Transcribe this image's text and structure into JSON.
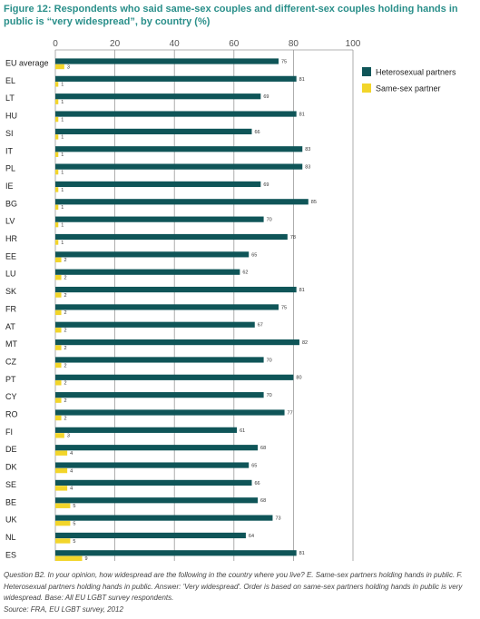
{
  "title": "Figure 12: Respondents who said same-sex couples and different-sex couples holding hands in public is “very widespread”, by country (%)",
  "footnote": {
    "question": "Question B2. In your opinion, how widespread are the following in the country where you live? E. Same-sex partners holding hands in public. F. Heterosexual partners holding hands in public. Answer: 'Very widespread'. Order is based on same-sex partners holding hands in public is very widespread. Base: All EU LGBT survey respondents.",
    "source": "Source: FRA, EU LGBT survey, 2012"
  },
  "colors": {
    "heterosexual": "#0f5558",
    "same_sex": "#f2d52a",
    "title": "#2a8f8a",
    "grid": "#9a9a9a"
  },
  "chart_data": {
    "type": "bar",
    "orientation": "horizontal",
    "categories": [
      "EU average",
      "EL",
      "LT",
      "HU",
      "SI",
      "IT",
      "PL",
      "IE",
      "BG",
      "LV",
      "HR",
      "EE",
      "LU",
      "SK",
      "FR",
      "AT",
      "MT",
      "CZ",
      "PT",
      "CY",
      "RO",
      "FI",
      "DE",
      "DK",
      "SE",
      "BE",
      "UK",
      "NL",
      "ES"
    ],
    "series": [
      {
        "name": "Heterosexual partners",
        "values": [
          75,
          81,
          69,
          81,
          66,
          83,
          83,
          69,
          85,
          70,
          78,
          65,
          62,
          81,
          75,
          67,
          82,
          70,
          80,
          70,
          77,
          61,
          68,
          65,
          66,
          68,
          73,
          64,
          81
        ]
      },
      {
        "name": "Same-sex partner",
        "values": [
          3,
          1,
          1,
          1,
          1,
          1,
          1,
          1,
          1,
          1,
          1,
          2,
          2,
          2,
          2,
          2,
          2,
          2,
          2,
          2,
          2,
          3,
          4,
          4,
          4,
          5,
          5,
          5,
          9
        ]
      }
    ],
    "xlim": [
      0,
      100
    ],
    "xticks": [
      0,
      20,
      40,
      60,
      80,
      100
    ],
    "grid": true,
    "legend_position": "top-right"
  }
}
